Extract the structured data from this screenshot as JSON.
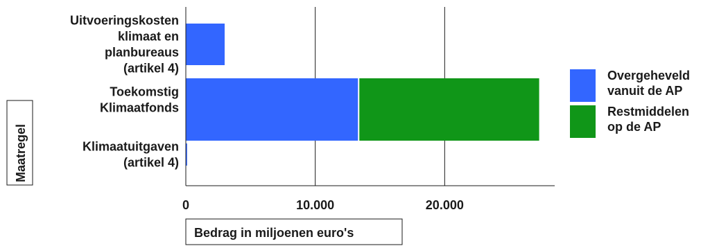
{
  "chart_data": {
    "type": "bar",
    "orientation": "horizontal",
    "stacked": true,
    "categories": [
      [
        "Uitvoeringskosten",
        "klimaat en",
        "planbureaus",
        "(artikel 4)"
      ],
      [
        "Toekomstig",
        "Klimaatfonds"
      ],
      [
        "Klimaatuitgaven",
        "(artikel 4)"
      ]
    ],
    "series": [
      {
        "name": [
          "Overgeheveld",
          "vanuit de AP"
        ],
        "color": "#3366ff",
        "values": [
          3000,
          13300,
          100
        ]
      },
      {
        "name": [
          "Restmiddelen",
          "op de AP"
        ],
        "color": "#109618",
        "values": [
          0,
          14000,
          0
        ]
      }
    ],
    "xlabel": "Bedrag in miljoenen euro's",
    "ylabel": "Maatregel",
    "xlim": [
      0,
      28500
    ],
    "xticks": [
      0,
      10000,
      20000
    ],
    "xtick_labels": [
      "0",
      "10.000",
      "20.000"
    ],
    "grid": true,
    "legend_position": "right"
  }
}
